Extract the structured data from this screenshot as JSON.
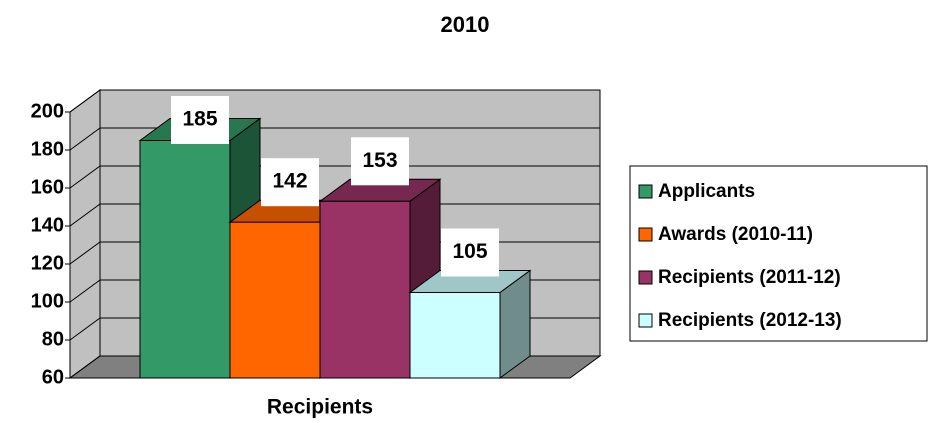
{
  "chart_data": {
    "type": "bar3d",
    "title": "2010",
    "categories": [
      "Recipients"
    ],
    "series": [
      {
        "name": "Applicants",
        "color": "#339966",
        "values": [
          185
        ]
      },
      {
        "name": "Awards (2010-11)",
        "color": "#ff6600",
        "values": [
          142
        ]
      },
      {
        "name": "Recipients (2011-12)",
        "color": "#993366",
        "values": [
          153
        ]
      },
      {
        "name": "Recipients (2012-13)",
        "color": "#ccffff",
        "values": [
          105
        ]
      }
    ],
    "ylim": [
      60,
      200
    ],
    "yticks": [
      60,
      80,
      100,
      120,
      140,
      160,
      180,
      200
    ],
    "grid": true,
    "legend": "right"
  }
}
